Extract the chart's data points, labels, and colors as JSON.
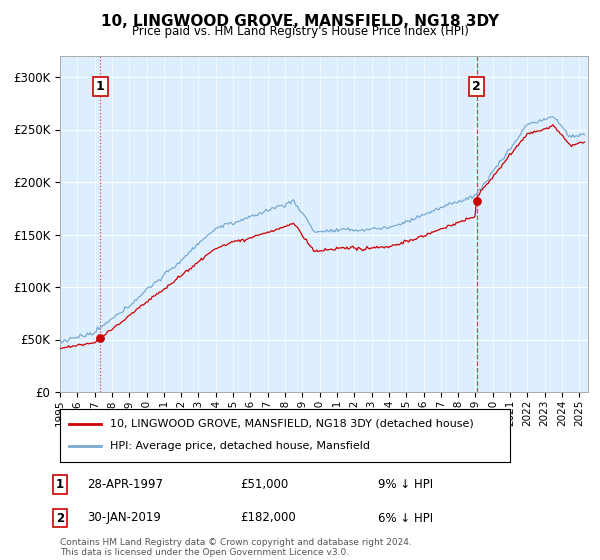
{
  "title": "10, LINGWOOD GROVE, MANSFIELD, NG18 3DY",
  "subtitle": "Price paid vs. HM Land Registry's House Price Index (HPI)",
  "bg_color": "#ddeeff",
  "hpi_color": "#7aaad0",
  "price_color": "#cc0000",
  "dashed_color": "#cc0000",
  "transaction1_year": 1997.32,
  "transaction1_price": 51000,
  "transaction2_year": 2019.08,
  "transaction2_price": 182000,
  "legend_label1": "10, LINGWOOD GROVE, MANSFIELD, NG18 3DY (detached house)",
  "legend_label2": "HPI: Average price, detached house, Mansfield",
  "footnote": "Contains HM Land Registry data © Crown copyright and database right 2024.\nThis data is licensed under the Open Government Licence v3.0.",
  "ylim": [
    0,
    320000
  ],
  "xlim_start": 1995.0,
  "xlim_end": 2025.5,
  "yticks": [
    0,
    50000,
    100000,
    150000,
    200000,
    250000,
    300000
  ],
  "ytick_labels": [
    "£0",
    "£50K",
    "£100K",
    "£150K",
    "£200K",
    "£250K",
    "£300K"
  ],
  "xtick_years": [
    1995,
    1996,
    1997,
    1998,
    1999,
    2000,
    2001,
    2002,
    2003,
    2004,
    2005,
    2006,
    2007,
    2008,
    2009,
    2010,
    2011,
    2012,
    2013,
    2014,
    2015,
    2016,
    2017,
    2018,
    2019,
    2020,
    2021,
    2022,
    2023,
    2024,
    2025
  ],
  "table_rows": [
    {
      "num": "1",
      "date": "28-APR-1997",
      "price": "£51,000",
      "pct": "9% ↓ HPI"
    },
    {
      "num": "2",
      "date": "30-JAN-2019",
      "price": "£182,000",
      "pct": "6% ↓ HPI"
    }
  ]
}
